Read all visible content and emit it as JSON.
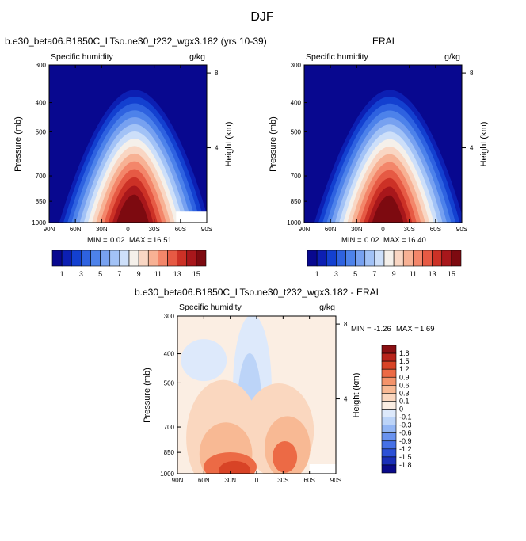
{
  "figure": {
    "title": "DJF",
    "labels": {
      "subtitle": "Specific humidity",
      "units": "g/kg",
      "ylabel": "Pressure (mb)",
      "ylabel_right": "Height (km)",
      "min_label": "MIN =",
      "max_label": "MAX ="
    }
  },
  "colors": {
    "abs_palette": [
      "#08088f",
      "#0c1fb3",
      "#1340d0",
      "#2e62e0",
      "#4d82ea",
      "#77a1f0",
      "#a2c2f6",
      "#cddff9",
      "#f5f0ea",
      "#f9d6c3",
      "#f7b194",
      "#f3866a",
      "#e65a44",
      "#cc3126",
      "#a8171b",
      "#7d0a10"
    ],
    "diff_palette": [
      "#0a0a8a",
      "#1a2fb8",
      "#2c50d6",
      "#4570e6",
      "#6a93ef",
      "#93b6f4",
      "#bcd4f8",
      "#dde9fb",
      "#fbeee3",
      "#fad7bf",
      "#f8b994",
      "#f4936a",
      "#ec6a45",
      "#d84326",
      "#b8231a",
      "#8a0f12"
    ]
  },
  "chart_data": [
    {
      "id": "model",
      "type": "heatmap",
      "title": "b.e30_beta06.B1850C_LTso.ne30_t232_wgx3.182 (yrs 10-39)",
      "x_ticks": [
        "90N",
        "60N",
        "30N",
        "0",
        "30S",
        "60S",
        "90S"
      ],
      "x_range": [
        90,
        -90
      ],
      "y_ticks": [
        "300",
        "400",
        "500",
        "700",
        "850",
        "1000"
      ],
      "y_ticks_right": [
        "8",
        "4"
      ],
      "ylim_mb": [
        1000,
        300
      ],
      "min": "0.02",
      "max": "16.51",
      "colorbar_labels": [
        "1",
        "3",
        "5",
        "7",
        "9",
        "11",
        "13",
        "15"
      ],
      "colorbar_levels": [
        1,
        2,
        3,
        4,
        5,
        6,
        7,
        8,
        9,
        10,
        11,
        12,
        13,
        14,
        15
      ],
      "peak_g_per_kg": 16.51
    },
    {
      "id": "obs",
      "type": "heatmap",
      "title": "ERAI",
      "x_ticks": [
        "90N",
        "60N",
        "30N",
        "0",
        "30S",
        "60S",
        "90S"
      ],
      "x_range": [
        90,
        -90
      ],
      "y_ticks": [
        "300",
        "400",
        "500",
        "700",
        "850",
        "1000"
      ],
      "y_ticks_right": [
        "8",
        "4"
      ],
      "ylim_mb": [
        1000,
        300
      ],
      "min": "0.02",
      "max": "16.40",
      "colorbar_labels": [
        "1",
        "3",
        "5",
        "7",
        "9",
        "11",
        "13",
        "15"
      ],
      "colorbar_levels": [
        1,
        2,
        3,
        4,
        5,
        6,
        7,
        8,
        9,
        10,
        11,
        12,
        13,
        14,
        15
      ],
      "peak_g_per_kg": 16.4
    },
    {
      "id": "diff",
      "type": "heatmap",
      "title": "b.e30_beta06.B1850C_LTso.ne30_t232_wgx3.182 - ERAI",
      "x_ticks": [
        "90N",
        "60N",
        "30N",
        "0",
        "30S",
        "60S",
        "90S"
      ],
      "x_range": [
        90,
        -90
      ],
      "y_ticks": [
        "300",
        "400",
        "500",
        "700",
        "850",
        "1000"
      ],
      "y_ticks_right": [
        "8",
        "4"
      ],
      "ylim_mb": [
        1000,
        300
      ],
      "min": "-1.26",
      "max": "1.69",
      "colorbar_labels": [
        "1.8",
        "1.5",
        "1.2",
        "0.9",
        "0.6",
        "0.3",
        "0.1",
        "0",
        "-0.1",
        "-0.3",
        "-0.6",
        "-0.9",
        "-1.2",
        "-1.5",
        "-1.8"
      ],
      "colorbar_levels": [
        -1.8,
        -1.5,
        -1.2,
        -0.9,
        -0.6,
        -0.3,
        -0.1,
        0,
        0.1,
        0.3,
        0.6,
        0.9,
        1.2,
        1.5,
        1.8
      ]
    }
  ]
}
